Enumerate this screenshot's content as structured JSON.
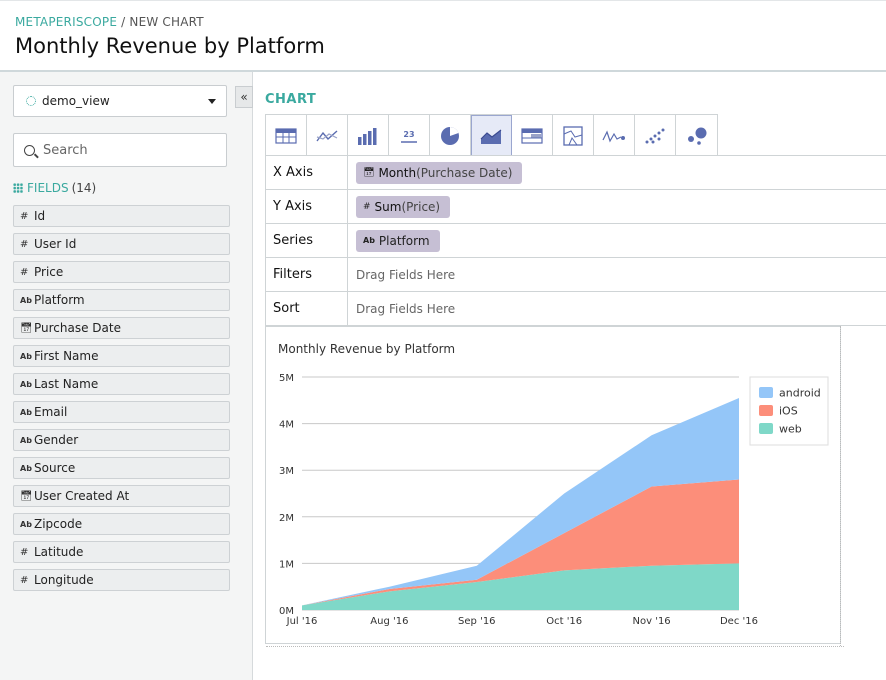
{
  "header": {
    "breadcrumb_app": "METAPERISCOPE",
    "breadcrumb_sep": " / ",
    "breadcrumb_page": "NEW CHART",
    "title": "Monthly Revenue by Platform"
  },
  "sidebar": {
    "view_select": "demo_view",
    "collapse_label": "«",
    "search_placeholder": "Search",
    "fields_label": "FIELDS",
    "fields_count": "(14)",
    "fields": [
      {
        "type": "#",
        "name": "Id"
      },
      {
        "type": "#",
        "name": "User Id"
      },
      {
        "type": "#",
        "name": "Price"
      },
      {
        "type": "Ab",
        "name": "Platform"
      },
      {
        "type": "date",
        "name": "Purchase Date"
      },
      {
        "type": "Ab",
        "name": "First Name"
      },
      {
        "type": "Ab",
        "name": "Last Name"
      },
      {
        "type": "Ab",
        "name": "Email"
      },
      {
        "type": "Ab",
        "name": "Gender"
      },
      {
        "type": "Ab",
        "name": "Source"
      },
      {
        "type": "date",
        "name": "User Created At"
      },
      {
        "type": "Ab",
        "name": "Zipcode"
      },
      {
        "type": "#",
        "name": "Latitude"
      },
      {
        "type": "#",
        "name": "Longitude"
      }
    ]
  },
  "main": {
    "chart_label": "CHART",
    "chart_types": [
      "table-icon",
      "line-icon",
      "bar-icon",
      "number-icon",
      "pie-icon",
      "area-icon",
      "pivot-icon",
      "map-icon",
      "sparkline-icon",
      "scatter-icon",
      "bubble-icon"
    ],
    "chart_types_active": "area-icon",
    "number_icon_text": "23",
    "encodings": {
      "x_label": "X Axis",
      "x_func": "Month",
      "x_field": "(Purchase Date)",
      "y_label": "Y Axis",
      "y_func": "Sum",
      "y_field": "(Price)",
      "series_label": "Series",
      "series_field": "Platform",
      "filters_label": "Filters",
      "filters_placeholder": "Drag Fields Here",
      "sort_label": "Sort",
      "sort_placeholder": "Drag Fields Here"
    }
  },
  "colors": {
    "accent": "#3aa99f",
    "android": "#94c6f8",
    "ios": "#fc8e7a",
    "web": "#7fd8c8"
  },
  "chart_data": {
    "type": "area",
    "stacked": true,
    "title": "Monthly Revenue by Platform",
    "categories": [
      "Jul '16",
      "Aug '16",
      "Sep '16",
      "Oct '16",
      "Nov '16",
      "Dec '16"
    ],
    "y_ticks": [
      "0M",
      "1M",
      "2M",
      "3M",
      "4M",
      "5M"
    ],
    "ylim": [
      0,
      5000000
    ],
    "legend_position": "top-right",
    "grid": true,
    "series": [
      {
        "name": "web",
        "color": "#7fd8c8",
        "values": [
          100000,
          400000,
          600000,
          850000,
          950000,
          1000000
        ]
      },
      {
        "name": "iOS",
        "color": "#fc8e7a",
        "values": [
          0,
          50000,
          50000,
          800000,
          1700000,
          1800000
        ]
      },
      {
        "name": "android",
        "color": "#94c6f8",
        "values": [
          0,
          50000,
          300000,
          850000,
          1100000,
          1750000
        ]
      }
    ],
    "legend_order": [
      "android",
      "iOS",
      "web"
    ]
  }
}
